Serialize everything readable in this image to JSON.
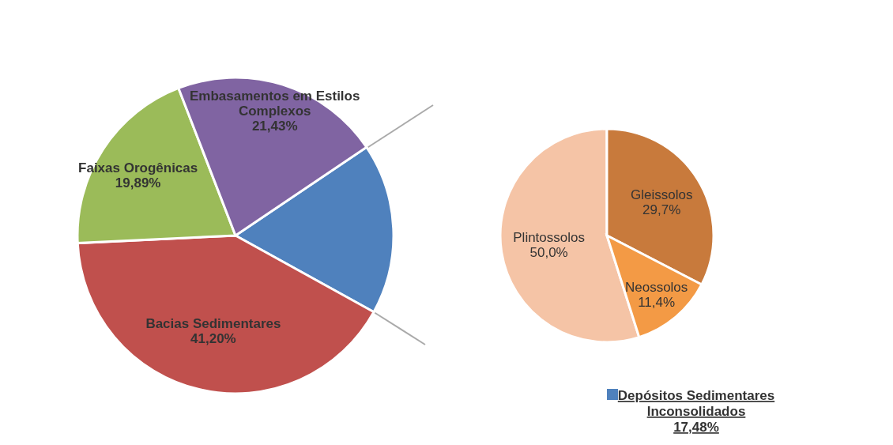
{
  "chart_data": [
    {
      "type": "pie",
      "categories": [
        "Depósitos Sedimentares Inconsolidados",
        "Bacias Sedimentares",
        "Faixas Orogênicas",
        "Embasamentos em Estilos Complexos"
      ],
      "values": [
        17.48,
        41.2,
        19.89,
        21.43
      ],
      "colors": [
        "#4f81bd",
        "#c0504d",
        "#9bbb59",
        "#8064a2"
      ],
      "value_labels": [
        "17,48%",
        "41,20%",
        "19,89%",
        "21,43%"
      ]
    },
    {
      "type": "pie",
      "categories": [
        "Plintossolos",
        "Gleissolos",
        "Neossolos"
      ],
      "values": [
        50.0,
        29.7,
        11.4
      ],
      "colors": [
        "#f5c4a6",
        "#c87a3c",
        "#f39a45"
      ],
      "value_labels": [
        "50,0%",
        "29,7%",
        "11,4%"
      ]
    }
  ]
}
